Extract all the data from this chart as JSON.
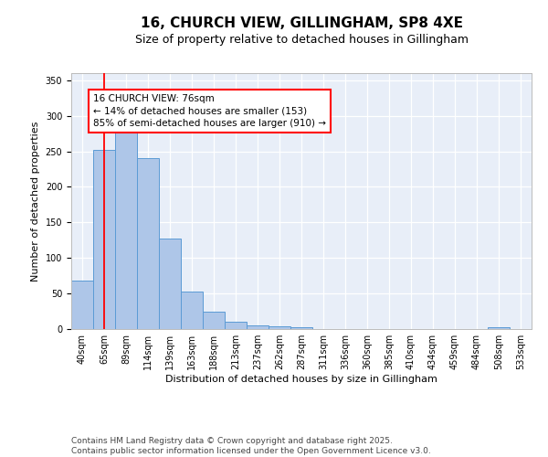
{
  "title_line1": "16, CHURCH VIEW, GILLINGHAM, SP8 4XE",
  "title_line2": "Size of property relative to detached houses in Gillingham",
  "xlabel": "Distribution of detached houses by size in Gillingham",
  "ylabel": "Number of detached properties",
  "categories": [
    "40sqm",
    "65sqm",
    "89sqm",
    "114sqm",
    "139sqm",
    "163sqm",
    "188sqm",
    "213sqm",
    "237sqm",
    "262sqm",
    "287sqm",
    "311sqm",
    "336sqm",
    "360sqm",
    "385sqm",
    "410sqm",
    "434sqm",
    "459sqm",
    "484sqm",
    "508sqm",
    "533sqm"
  ],
  "values": [
    68,
    252,
    292,
    240,
    127,
    53,
    25,
    10,
    5,
    4,
    3,
    0,
    0,
    0,
    0,
    0,
    0,
    0,
    0,
    3,
    0
  ],
  "bar_color": "#aec6e8",
  "bar_edge_color": "#5b9bd5",
  "background_color": "#e8eef8",
  "grid_color": "#ffffff",
  "red_line_x": 1,
  "annotation_box_text": "16 CHURCH VIEW: 76sqm\n← 14% of detached houses are smaller (153)\n85% of semi-detached houses are larger (910) →",
  "ylim": [
    0,
    360
  ],
  "yticks": [
    0,
    50,
    100,
    150,
    200,
    250,
    300,
    350
  ],
  "footer_text": "Contains HM Land Registry data © Crown copyright and database right 2025.\nContains public sector information licensed under the Open Government Licence v3.0.",
  "title_fontsize": 11,
  "subtitle_fontsize": 9,
  "axis_label_fontsize": 8,
  "tick_fontsize": 7,
  "annotation_fontsize": 7.5,
  "footer_fontsize": 6.5
}
